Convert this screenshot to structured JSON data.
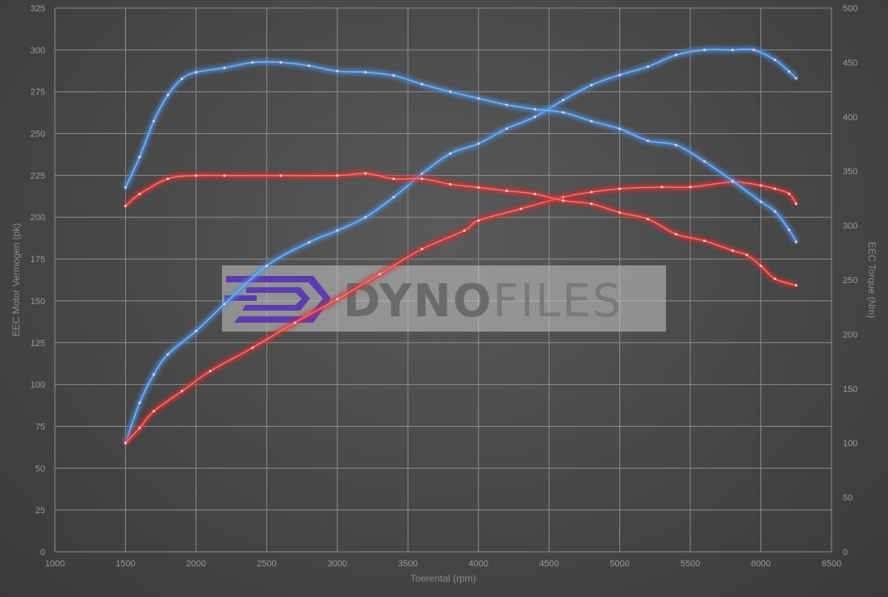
{
  "chart_data": {
    "type": "line",
    "xlabel": "Toerental (rpm)",
    "ylabel_left": "EEC Motor Vermogen (pk)",
    "ylabel_right": "EEC Torque (Nm)",
    "xlim": [
      1000,
      6500
    ],
    "ylim_left": [
      0,
      325
    ],
    "ylim_right": [
      0,
      500
    ],
    "x_ticks": [
      1000,
      1500,
      2000,
      2500,
      3000,
      3500,
      4000,
      4500,
      5000,
      5500,
      6000,
      6500
    ],
    "y_left_ticks": [
      0,
      25,
      50,
      75,
      100,
      125,
      150,
      175,
      200,
      225,
      250,
      275,
      300,
      325
    ],
    "y_right_ticks": [
      0,
      50,
      100,
      150,
      200,
      250,
      300,
      350,
      400,
      450,
      500
    ],
    "grid": true,
    "watermark": "DynoFiles",
    "colors": {
      "tuned": "#4a90e2",
      "stock": "#e03030",
      "grid": "#8c8c8c"
    },
    "series": [
      {
        "axis": "left",
        "color": "#4a90e2",
        "x": [
          1500,
          1600,
          1700,
          1800,
          2000,
          2200,
          2500,
          2800,
          3000,
          3200,
          3400,
          3600,
          3800,
          4000,
          4200,
          4400,
          4600,
          4800,
          5000,
          5200,
          5400,
          5600,
          5800,
          5950,
          6100,
          6200,
          6250
        ],
        "y": [
          65,
          89,
          106,
          118,
          132,
          148,
          171,
          185,
          192,
          200,
          212,
          226,
          238,
          244,
          253,
          260,
          270,
          279,
          285,
          290,
          297,
          300,
          300,
          300,
          294,
          287,
          283
        ]
      },
      {
        "axis": "left",
        "color": "#e03030",
        "x": [
          1500,
          1600,
          1700,
          1900,
          2100,
          2400,
          2700,
          3000,
          3300,
          3600,
          3900,
          4000,
          4300,
          4600,
          4800,
          5000,
          5300,
          5500,
          5800,
          6000,
          6100,
          6200,
          6250
        ],
        "y": [
          65,
          74,
          84,
          96,
          108,
          122,
          137,
          151,
          166,
          181,
          192,
          198,
          205,
          212,
          215,
          217,
          218,
          218,
          221,
          219,
          217,
          214,
          208
        ]
      },
      {
        "axis": "right",
        "color": "#4a90e2",
        "x": [
          1500,
          1600,
          1700,
          1800,
          1900,
          2000,
          2200,
          2400,
          2600,
          2800,
          3000,
          3200,
          3400,
          3600,
          3800,
          4000,
          4200,
          4400,
          4600,
          4800,
          5000,
          5200,
          5400,
          5600,
          5800,
          6000,
          6100,
          6200,
          6250
        ],
        "y": [
          335,
          363,
          396,
          420,
          435,
          441,
          445,
          450,
          450,
          447,
          442,
          441,
          438,
          430,
          423,
          417,
          411,
          407,
          404,
          396,
          389,
          378,
          374,
          359,
          341,
          322,
          313,
          296,
          285
        ]
      },
      {
        "axis": "right",
        "color": "#e03030",
        "x": [
          1500,
          1600,
          1800,
          2000,
          2200,
          2600,
          3000,
          3200,
          3400,
          3600,
          3800,
          4000,
          4200,
          4400,
          4600,
          4800,
          5000,
          5200,
          5400,
          5600,
          5800,
          5900,
          6000,
          6100,
          6250
        ],
        "y": [
          318,
          329,
          343,
          346,
          346,
          346,
          346,
          348,
          343,
          343,
          338,
          335,
          332,
          329,
          323,
          320,
          312,
          306,
          292,
          286,
          277,
          273,
          263,
          251,
          245
        ]
      }
    ]
  }
}
